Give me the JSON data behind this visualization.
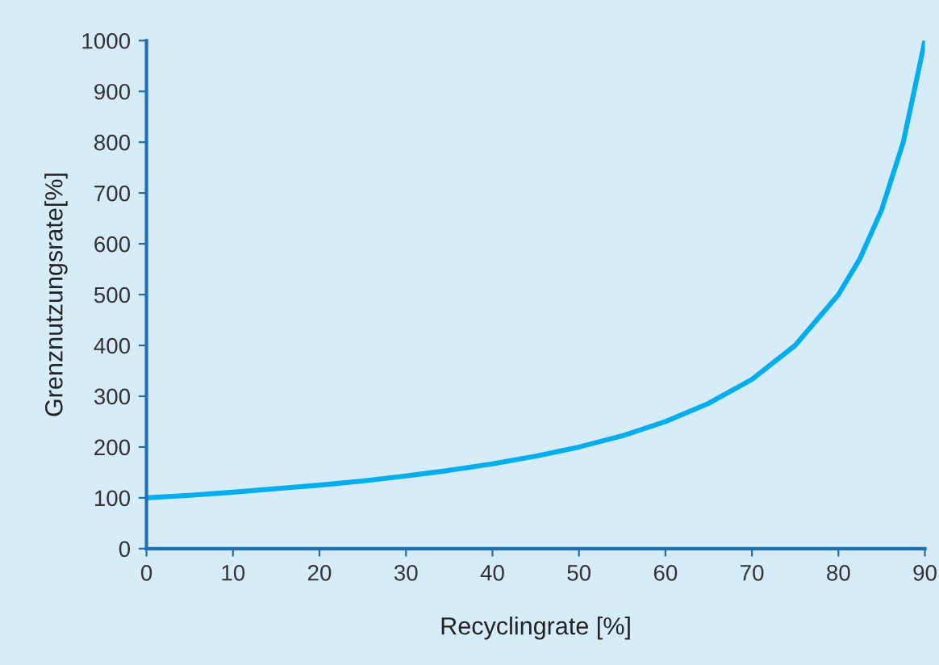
{
  "chart_data": {
    "type": "line",
    "xlabel": "Recyclingrate [%]",
    "ylabel": "Grenznutzungsrate[%]",
    "x": [
      0,
      5,
      10,
      15,
      20,
      25,
      30,
      35,
      40,
      45,
      50,
      55,
      60,
      65,
      70,
      75,
      80,
      82.5,
      85,
      87.5,
      90
    ],
    "series": [
      {
        "color": "#00aeef",
        "values": [
          100,
          105,
          111,
          118,
          125,
          133,
          143,
          154,
          167,
          182,
          200,
          222,
          250,
          286,
          333,
          400,
          500,
          571,
          667,
          800,
          1000
        ]
      }
    ],
    "xlim": [
      0,
      90
    ],
    "ylim": [
      0,
      1000
    ],
    "xticks": [
      0,
      10,
      20,
      30,
      40,
      50,
      60,
      70,
      80,
      90
    ],
    "yticks": [
      0,
      100,
      200,
      300,
      400,
      500,
      600,
      700,
      800,
      900,
      1000
    ],
    "grid": false,
    "legend": false,
    "marker": "none",
    "line_style": "solid"
  }
}
